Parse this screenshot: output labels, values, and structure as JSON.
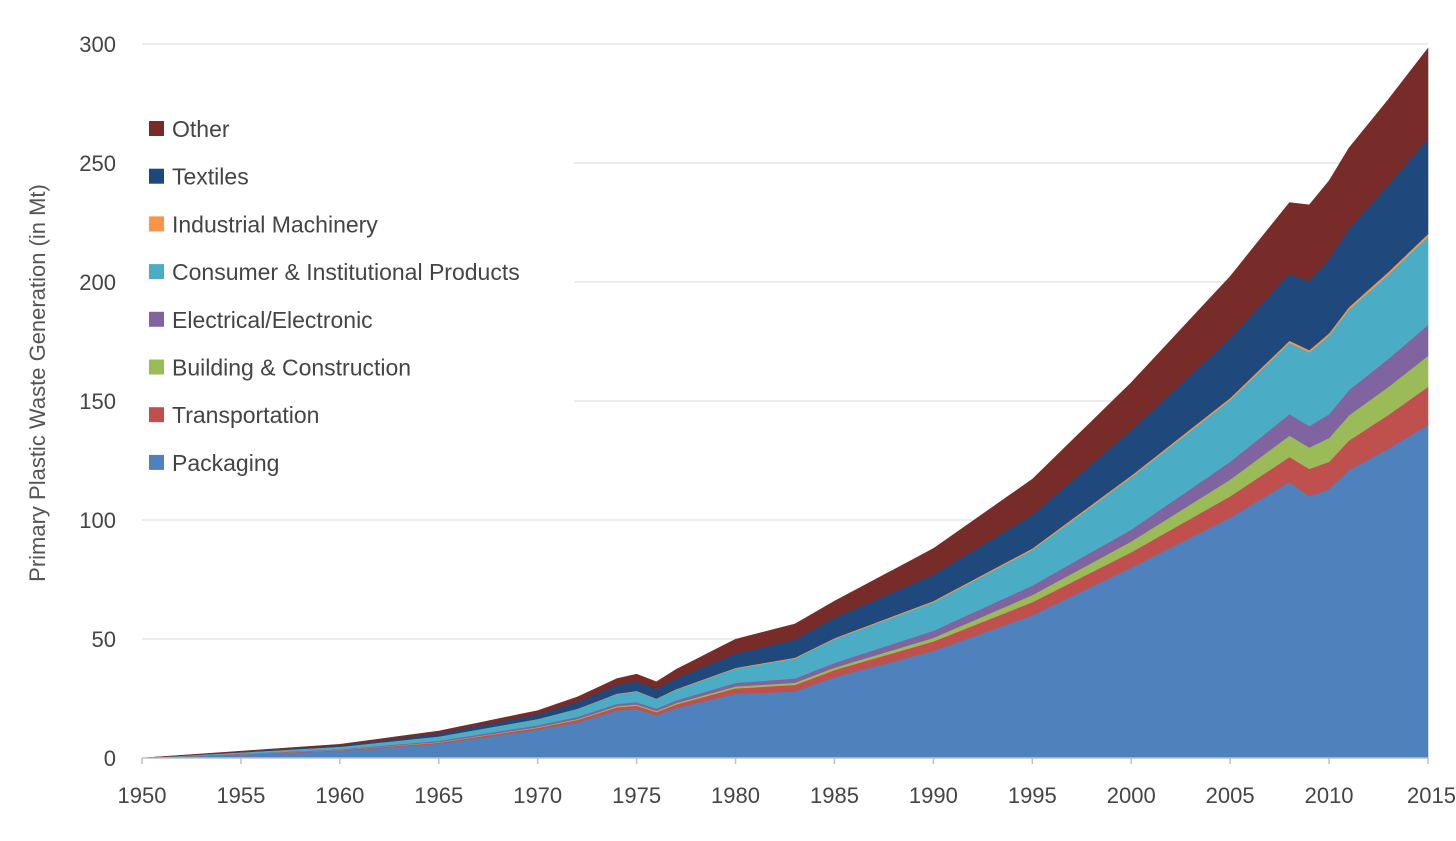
{
  "chart_data": {
    "type": "area",
    "stacked": true,
    "title": "",
    "xlabel": "",
    "ylabel": "Primary Plastic Waste Generation (in Mt)",
    "xlim": [
      1950,
      2015
    ],
    "ylim": [
      0,
      300
    ],
    "x_ticks": [
      1950,
      1955,
      1960,
      1965,
      1970,
      1975,
      1980,
      1985,
      1990,
      1995,
      2000,
      2005,
      2010,
      2015
    ],
    "y_ticks": [
      0,
      50,
      100,
      150,
      200,
      250,
      300
    ],
    "grid": "horizontal",
    "legend_position": "top-left",
    "series": [
      {
        "name": "Packaging",
        "color": "#4F81BD",
        "x": [
          1950,
          1955,
          1960,
          1965,
          1970,
          1972,
          1974,
          1975,
          1976,
          1977,
          1980,
          1983,
          1985,
          1990,
          1995,
          2000,
          2005,
          2008,
          2009,
          2010,
          2011,
          2013,
          2015
        ],
        "values": [
          0,
          1.5,
          3,
          6,
          12,
          15,
          20,
          20.5,
          18,
          21,
          27,
          28,
          34,
          45,
          60,
          80,
          101,
          116,
          110,
          113,
          121,
          130,
          140
        ]
      },
      {
        "name": "Transportation",
        "color": "#C0504D",
        "x": [
          1950,
          1960,
          1970,
          1975,
          1976,
          1980,
          1985,
          1990,
          1995,
          2000,
          2005,
          2008,
          2009,
          2010,
          2015
        ],
        "values": [
          0,
          0.3,
          0.7,
          1.5,
          1.3,
          2.3,
          3,
          4,
          5.5,
          6.5,
          9,
          10.5,
          11.5,
          11.5,
          16
        ]
      },
      {
        "name": "Building & Construction",
        "color": "#9BBB59",
        "x": [
          1950,
          1960,
          1970,
          1975,
          1976,
          1980,
          1985,
          1990,
          1995,
          2000,
          2005,
          2008,
          2009,
          2010,
          2015
        ],
        "values": [
          0,
          0.1,
          0.3,
          0.5,
          0.5,
          0.8,
          1,
          1.5,
          3,
          4.5,
          7,
          9,
          9,
          10,
          13
        ]
      },
      {
        "name": "Electrical/Electronic",
        "color": "#8064A2",
        "x": [
          1950,
          1960,
          1970,
          1975,
          1976,
          1980,
          1985,
          1990,
          1995,
          2000,
          2005,
          2008,
          2009,
          2010,
          2015
        ],
        "values": [
          0,
          0.3,
          0.8,
          1,
          1,
          1.5,
          2,
          3,
          4,
          5,
          7.5,
          9,
          9,
          10,
          13
        ]
      },
      {
        "name": "Consumer & Institutional Products",
        "color": "#4BACC6",
        "x": [
          1950,
          1960,
          1970,
          1975,
          1976,
          1980,
          1985,
          1990,
          1995,
          2000,
          2005,
          2008,
          2009,
          2010,
          2015
        ],
        "values": [
          0,
          1,
          2.5,
          4.5,
          4,
          6,
          10,
          12,
          15,
          22,
          26,
          30,
          31,
          33,
          37
        ]
      },
      {
        "name": "Industrial Machinery",
        "color": "#F79646",
        "x": [
          1950,
          1960,
          1970,
          1975,
          1976,
          1980,
          1985,
          1990,
          1995,
          2000,
          2005,
          2008,
          2009,
          2010,
          2015
        ],
        "values": [
          0,
          0.05,
          0.1,
          0.2,
          0.2,
          0.3,
          0.4,
          0.5,
          0.6,
          0.7,
          0.8,
          0.9,
          0.9,
          1,
          1.2
        ]
      },
      {
        "name": "Textiles",
        "color": "#1F497D",
        "x": [
          1950,
          1960,
          1970,
          1975,
          1976,
          1980,
          1985,
          1990,
          1995,
          2000,
          2005,
          2008,
          2009,
          2010,
          2015
        ],
        "values": [
          0,
          0.5,
          2,
          4,
          4,
          6,
          8.5,
          11,
          14,
          19,
          25,
          28,
          29,
          31,
          40
        ]
      },
      {
        "name": "Other",
        "color": "#772C2A",
        "x": [
          1950,
          1960,
          1970,
          1975,
          1976,
          1980,
          1985,
          1990,
          1995,
          2000,
          2005,
          2008,
          2009,
          2010,
          2015
        ],
        "values": [
          0,
          0.5,
          1.5,
          3,
          3,
          6,
          7,
          11,
          15,
          20,
          26,
          30,
          32,
          33,
          38
        ]
      }
    ]
  }
}
